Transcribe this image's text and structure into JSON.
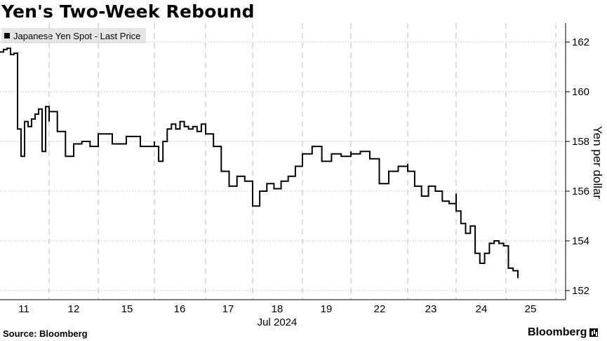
{
  "title": "Yen's Two-Week Rebound",
  "source": "Source: Bloomberg",
  "logo_text": "Bloomberg",
  "logo_icon": "bloomberg-terminal-icon",
  "colors": {
    "line": "#000000",
    "grid": "#c8c8c8",
    "legend_bg": "#e6e6e6",
    "background": "#ffffff"
  },
  "chart_data": {
    "type": "line",
    "title": "Yen's Two-Week Rebound",
    "xlabel": "Jul 2024",
    "ylabel": "Yen per dollar",
    "y_axis_side": "right",
    "ylim": [
      151.8,
      162.6
    ],
    "yticks": [
      152,
      154,
      156,
      158,
      160,
      162
    ],
    "xticks": [
      "11",
      "12",
      "15",
      "16",
      "17",
      "18",
      "19",
      "22",
      "23",
      "24",
      "25"
    ],
    "x_sublabel": "Jul 2024",
    "grid": true,
    "legend_position": "top-left",
    "series": [
      {
        "name": "Japanese Yen Spot - Last Price",
        "points": [
          [
            "11",
            161.6
          ],
          [
            "11",
            161.7
          ],
          [
            "11",
            161.75
          ],
          [
            "11",
            161.5
          ],
          [
            "11",
            161.55
          ],
          [
            "11",
            158.5
          ],
          [
            "11",
            157.4
          ],
          [
            "11",
            158.8
          ],
          [
            "11",
            158.6
          ],
          [
            "11",
            158.9
          ],
          [
            "11",
            159.1
          ],
          [
            "11",
            159.3
          ],
          [
            "11",
            157.6
          ],
          [
            "11",
            159.4
          ],
          [
            "11",
            158.8
          ],
          [
            "12",
            159.2
          ],
          [
            "12",
            158.4
          ],
          [
            "12",
            157.4
          ],
          [
            "12",
            157.9
          ],
          [
            "12",
            158.0
          ],
          [
            "12",
            157.8
          ],
          [
            "12",
            157.9
          ],
          [
            "15",
            158.3
          ],
          [
            "15",
            157.9
          ],
          [
            "15",
            158.2
          ],
          [
            "15",
            157.8
          ],
          [
            "15",
            158.0
          ],
          [
            "16",
            157.8
          ],
          [
            "16",
            157.2
          ],
          [
            "16",
            158.0
          ],
          [
            "16",
            158.5
          ],
          [
            "16",
            158.7
          ],
          [
            "16",
            158.5
          ],
          [
            "16",
            158.8
          ],
          [
            "16",
            158.6
          ],
          [
            "16",
            158.5
          ],
          [
            "16",
            158.6
          ],
          [
            "16",
            158.4
          ],
          [
            "16",
            158.7
          ],
          [
            "16",
            158.5
          ],
          [
            "17",
            158.3
          ],
          [
            "17",
            157.8
          ],
          [
            "17",
            156.8
          ],
          [
            "17",
            156.2
          ],
          [
            "17",
            156.6
          ],
          [
            "17",
            156.4
          ],
          [
            "17",
            156.2
          ],
          [
            "18",
            155.4
          ],
          [
            "18",
            156.0
          ],
          [
            "18",
            156.3
          ],
          [
            "18",
            156.1
          ],
          [
            "18",
            156.4
          ],
          [
            "18",
            156.6
          ],
          [
            "18",
            157.0
          ],
          [
            "18",
            157.3
          ],
          [
            "19",
            157.5
          ],
          [
            "19",
            157.8
          ],
          [
            "19",
            157.2
          ],
          [
            "19",
            157.5
          ],
          [
            "19",
            157.4
          ],
          [
            "19",
            157.6
          ],
          [
            "22",
            157.5
          ],
          [
            "22",
            157.6
          ],
          [
            "22",
            157.3
          ],
          [
            "22",
            156.3
          ],
          [
            "22",
            156.8
          ],
          [
            "22",
            157.0
          ],
          [
            "22",
            157.1
          ],
          [
            "23",
            156.8
          ],
          [
            "23",
            156.2
          ],
          [
            "23",
            155.8
          ],
          [
            "23",
            156.2
          ],
          [
            "23",
            156.0
          ],
          [
            "23",
            155.6
          ],
          [
            "23",
            155.5
          ],
          [
            "23",
            155.9
          ],
          [
            "24",
            155.2
          ],
          [
            "24",
            154.7
          ],
          [
            "24",
            154.3
          ],
          [
            "24",
            154.6
          ],
          [
            "24",
            153.5
          ],
          [
            "24",
            153.1
          ],
          [
            "24",
            153.5
          ],
          [
            "24",
            153.9
          ],
          [
            "24",
            154.0
          ],
          [
            "24",
            153.9
          ],
          [
            "24",
            153.8
          ],
          [
            "24",
            152.9
          ],
          [
            "24",
            152.8
          ],
          [
            "24",
            152.5
          ]
        ]
      }
    ]
  }
}
